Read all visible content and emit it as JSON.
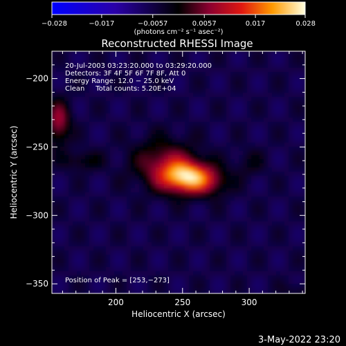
{
  "chart_data": {
    "type": "heatmap",
    "title": "Reconstructed RHESSI Image",
    "xlabel": "Heliocentric X (arcsec)",
    "ylabel": "Heliocentric Y (arcsec)",
    "xlim": [
      152,
      342
    ],
    "ylim": [
      -357,
      -180
    ],
    "x_ticks": [
      200,
      250,
      300
    ],
    "y_ticks": [
      -200,
      -250,
      -300,
      -350
    ],
    "colorbar": {
      "label": "(photons cm⁻² s⁻¹ asec⁻²)",
      "range": [
        -0.028,
        0.028
      ],
      "tick_values": [
        -0.028,
        -0.017,
        -0.0057,
        0.0057,
        0.017,
        0.028
      ],
      "tick_labels": [
        "−0.028",
        "−0.017",
        "−0.0057",
        "0.0057",
        "0.017",
        "0.028"
      ]
    },
    "annotations": [
      "20-Jul-2003 03:23:20.000 to 03:29:20.000",
      "Detectors: 3F 4F 5F 6F 7F 8F, Att 0",
      "Energy Range: 12.0 − 25.0 keV",
      "Clean     Total counts: 5.20E+04"
    ],
    "peak_label": "Position of Peak = [253,−273]",
    "peak": [
      253,
      -273
    ],
    "sources": [
      {
        "x": 253,
        "y": -272,
        "sx": 13,
        "sy": 8,
        "amp": 0.028
      },
      {
        "x": 236,
        "y": -262,
        "sx": 16,
        "sy": 12,
        "amp": 0.012
      },
      {
        "x": 272,
        "y": -276,
        "sx": 10,
        "sy": 7,
        "amp": 0.008
      },
      {
        "x": 157,
        "y": -232,
        "sx": 6,
        "sy": 11,
        "amp": 0.014
      },
      {
        "x": 175,
        "y": -260,
        "sx": 10,
        "sy": 5,
        "amp": 0.006
      },
      {
        "x": 300,
        "y": -262,
        "sx": 8,
        "sy": 7,
        "amp": 0.004
      },
      {
        "x": 338,
        "y": -355,
        "sx": 8,
        "sy": 4,
        "amp": 0.004
      }
    ],
    "background_level": -0.006
  },
  "footer_date": "3-May-2022 23:20"
}
